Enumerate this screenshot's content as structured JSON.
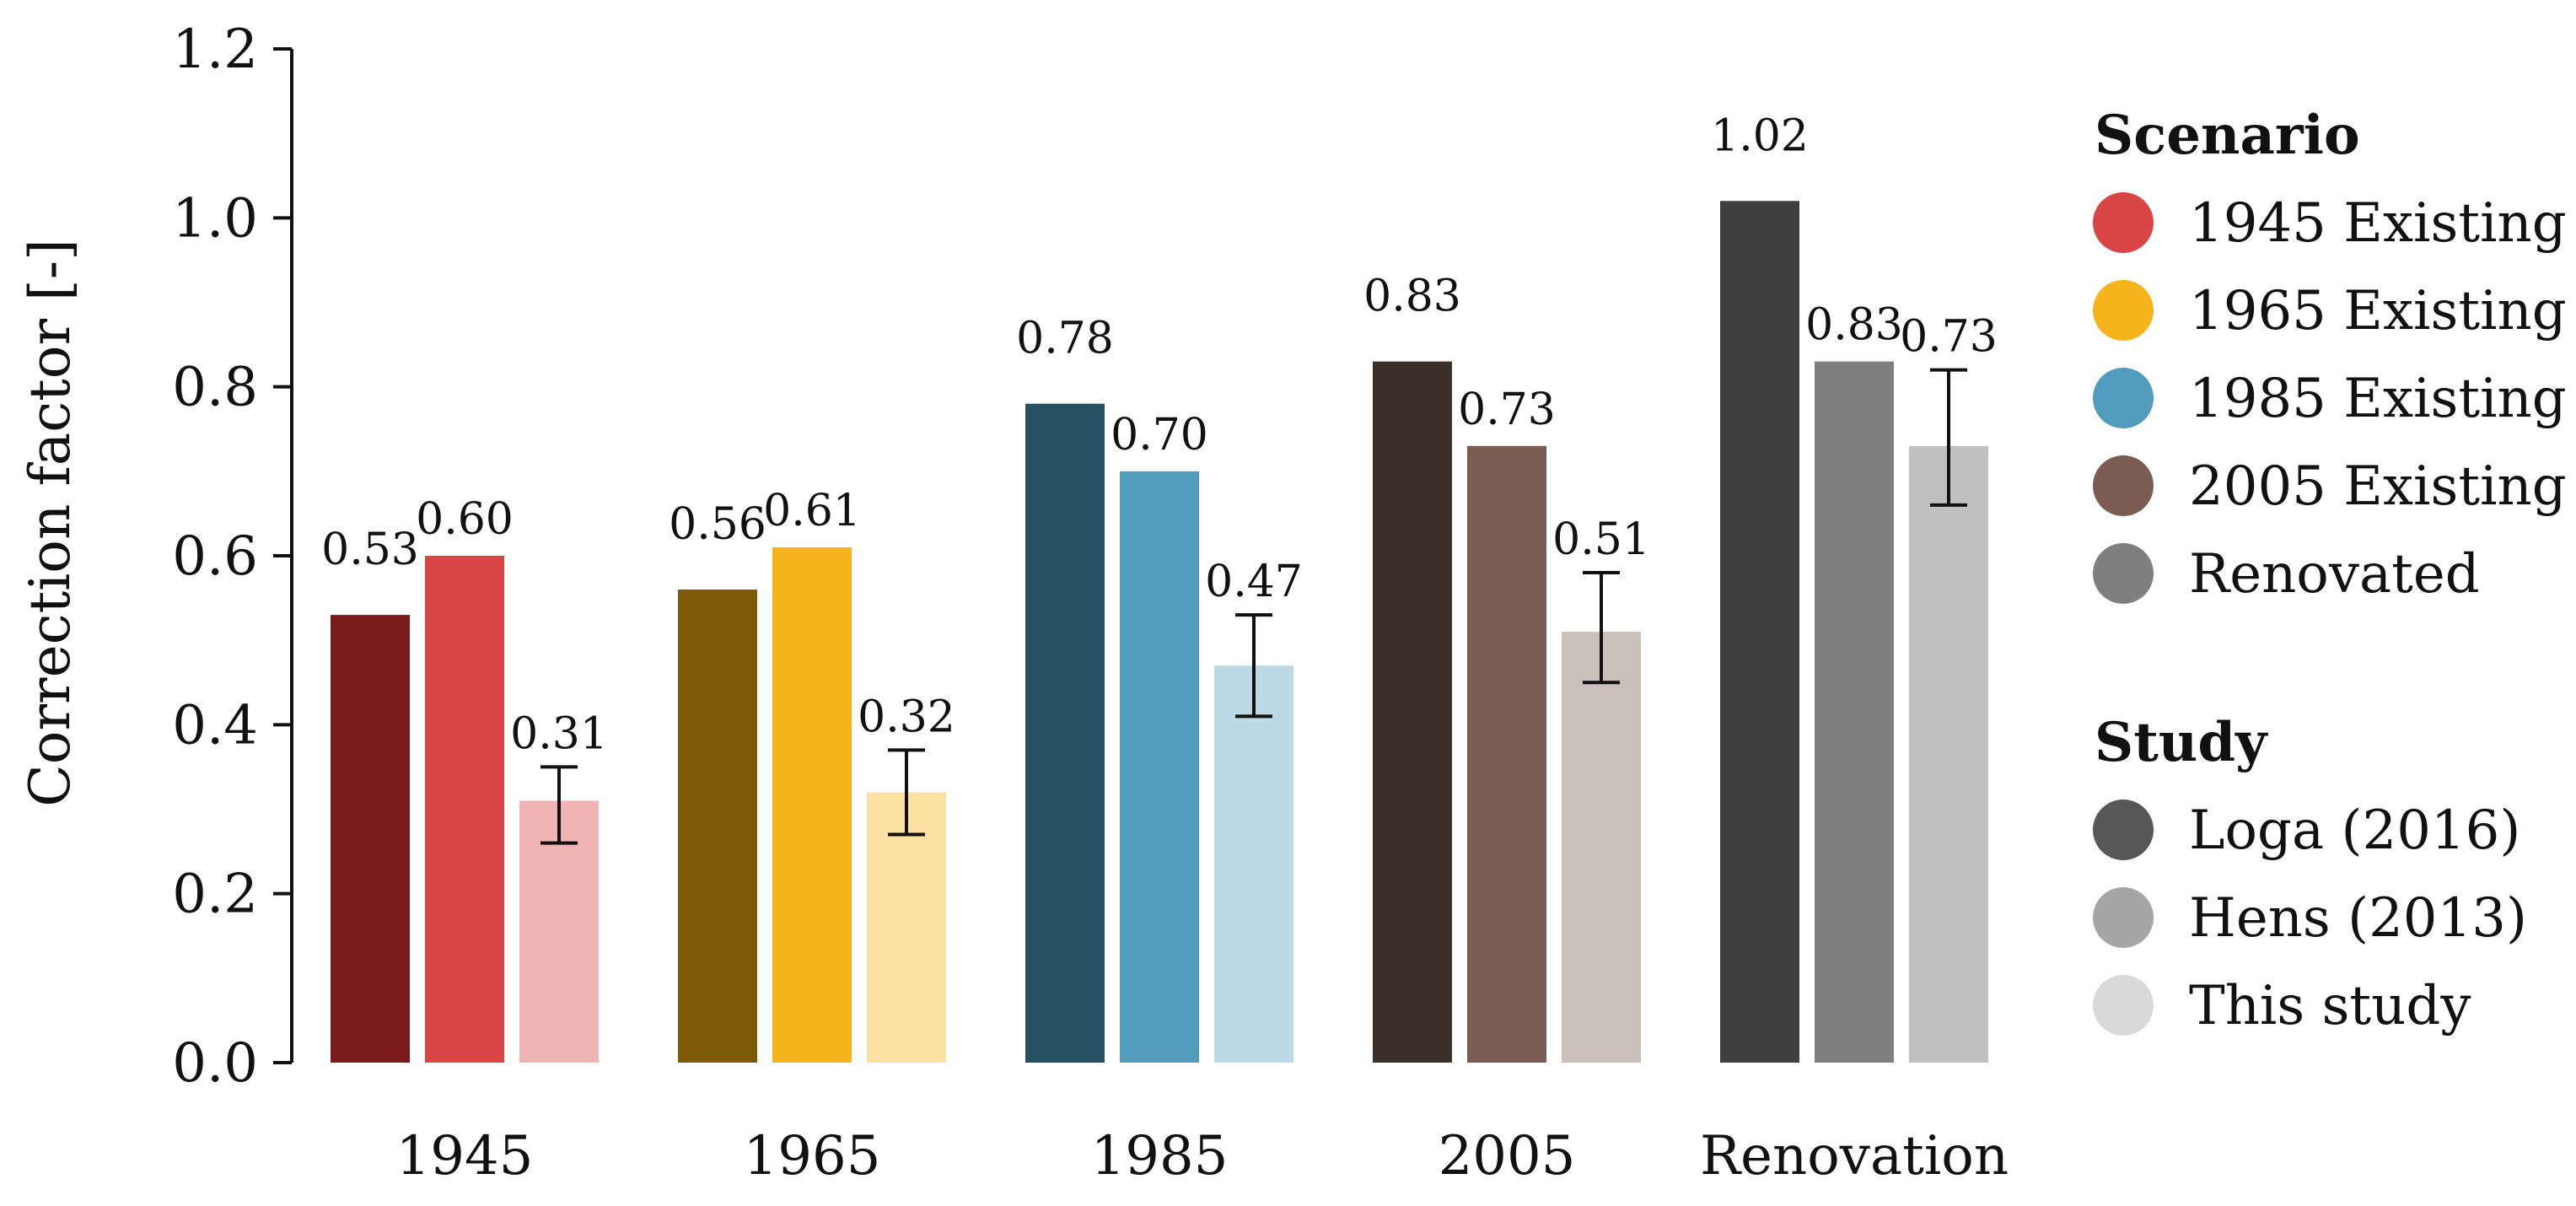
{
  "chart_data": {
    "type": "bar",
    "title": "",
    "xlabel": "",
    "ylabel": "Correction factor [-]",
    "ylim": [
      0,
      1.2
    ],
    "yticks": [
      "0.0",
      "0.2",
      "0.4",
      "0.6",
      "0.8",
      "1.0",
      "1.2"
    ],
    "grid": false,
    "categories": [
      "1945",
      "1965",
      "1985",
      "2005",
      "Renovation"
    ],
    "series": [
      {
        "name": "Loga (2016)",
        "values": [
          0.53,
          0.56,
          0.78,
          0.83,
          1.02
        ],
        "labels": [
          "0.53",
          "0.56",
          "0.78",
          "0.83",
          "1.02"
        ],
        "colors": [
          "#7a1a1a",
          "#7d5a05",
          "#274f62",
          "#3c2e28",
          "#3f3f3f"
        ]
      },
      {
        "name": "Hens (2013)",
        "values": [
          0.6,
          0.61,
          0.7,
          0.73,
          0.83
        ],
        "labels": [
          "0.60",
          "0.61",
          "0.70",
          "0.73",
          "0.83"
        ],
        "colors": [
          "#d94646",
          "#f5b41c",
          "#519bbd",
          "#7a5c53",
          "#7f7f7f"
        ]
      },
      {
        "name": "This study",
        "values": [
          0.31,
          0.32,
          0.47,
          0.51,
          0.73
        ],
        "labels": [
          "0.31",
          "0.32",
          "0.47",
          "0.51",
          "0.73"
        ],
        "error_low": [
          0.26,
          0.27,
          0.41,
          0.45,
          0.66
        ],
        "error_high": [
          0.35,
          0.37,
          0.53,
          0.58,
          0.82
        ],
        "colors": [
          "#f0b4b4",
          "#fbe2a2",
          "#bcd9e6",
          "#cbbfba",
          "#c0c0c0"
        ]
      }
    ],
    "legend": {
      "placement": "right",
      "groups": [
        {
          "title": "Scenario",
          "items": [
            {
              "label": "1945 Existing",
              "color": "#d94646"
            },
            {
              "label": "1965 Existing",
              "color": "#f5b41c"
            },
            {
              "label": "1985 Existing",
              "color": "#519bbd"
            },
            {
              "label": "2005 Existing",
              "color": "#7a5c53"
            },
            {
              "label": "Renovated",
              "color": "#7f7f7f"
            }
          ]
        },
        {
          "title": "Study",
          "items": [
            {
              "label": "Loga (2016)",
              "color": "#575757"
            },
            {
              "label": "Hens (2013)",
              "color": "#a6a6a6"
            },
            {
              "label": "This study",
              "color": "#d9d9d9"
            }
          ]
        }
      ]
    }
  }
}
